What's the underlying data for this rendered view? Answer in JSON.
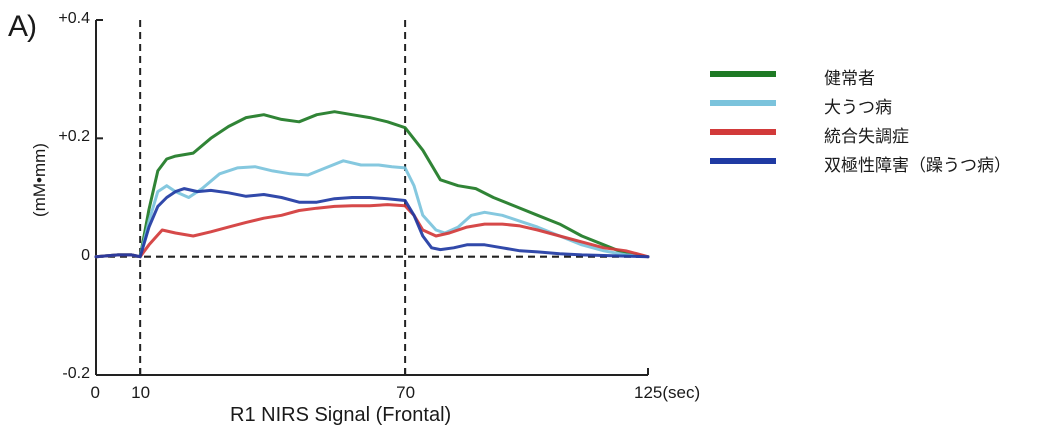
{
  "panel_label": "A)",
  "chart_data": {
    "type": "line",
    "title": "",
    "xlabel": "R1 NIRS Signal (Frontal)",
    "ylabel": "(mM•mm)",
    "xlim": [
      0,
      125
    ],
    "ylim": [
      -0.2,
      0.4
    ],
    "x_ticks": [
      {
        "value": 0,
        "label": "0"
      },
      {
        "value": 10,
        "label": "10"
      },
      {
        "value": 70,
        "label": "70"
      },
      {
        "value": 125,
        "label": "125(sec)"
      }
    ],
    "y_ticks": [
      {
        "value": 0.4,
        "label": "+0.4"
      },
      {
        "value": 0.2,
        "label": "+0.2"
      },
      {
        "value": 0,
        "label": "0"
      },
      {
        "value": -0.2,
        "label": "-0.2"
      }
    ],
    "reference_lines": {
      "vertical_x": [
        10,
        70
      ],
      "horizontal_y": [
        0
      ]
    },
    "grid": false,
    "legend_position": "right",
    "series": [
      {
        "name": "健常者",
        "color": "#1e7a25",
        "x": [
          0,
          5,
          8,
          10,
          12,
          14,
          16,
          18,
          22,
          26,
          30,
          34,
          38,
          42,
          46,
          50,
          54,
          58,
          62,
          66,
          70,
          74,
          78,
          82,
          86,
          90,
          95,
          100,
          105,
          110,
          115,
          120,
          125
        ],
        "y": [
          0,
          0.003,
          0.003,
          0,
          0.08,
          0.145,
          0.165,
          0.17,
          0.175,
          0.2,
          0.22,
          0.235,
          0.24,
          0.232,
          0.228,
          0.24,
          0.245,
          0.24,
          0.235,
          0.228,
          0.218,
          0.18,
          0.13,
          0.12,
          0.115,
          0.1,
          0.085,
          0.07,
          0.055,
          0.035,
          0.02,
          0.005,
          0
        ]
      },
      {
        "name": "大うつ病",
        "color": "#7bc3dc",
        "x": [
          0,
          5,
          8,
          10,
          12,
          14,
          16,
          18,
          21,
          24,
          28,
          32,
          36,
          40,
          44,
          48,
          52,
          56,
          60,
          64,
          67,
          70,
          72,
          74,
          77,
          79,
          82,
          85,
          88,
          92,
          96,
          100,
          105,
          110,
          115,
          120,
          125
        ],
        "y": [
          0,
          0.003,
          0.003,
          0,
          0.06,
          0.11,
          0.12,
          0.11,
          0.1,
          0.115,
          0.14,
          0.15,
          0.152,
          0.145,
          0.14,
          0.138,
          0.15,
          0.162,
          0.155,
          0.155,
          0.152,
          0.15,
          0.12,
          0.07,
          0.045,
          0.04,
          0.05,
          0.07,
          0.075,
          0.07,
          0.06,
          0.05,
          0.035,
          0.02,
          0.01,
          0.003,
          0
        ]
      },
      {
        "name": "統合失調症",
        "color": "#d23a3a",
        "x": [
          0,
          5,
          8,
          10,
          12,
          15,
          18,
          22,
          26,
          30,
          34,
          38,
          42,
          46,
          50,
          54,
          58,
          62,
          66,
          70,
          72,
          74,
          77,
          80,
          84,
          88,
          92,
          96,
          100,
          105,
          110,
          115,
          120,
          125
        ],
        "y": [
          0,
          0.003,
          0.003,
          0,
          0.02,
          0.045,
          0.04,
          0.035,
          0.042,
          0.05,
          0.058,
          0.065,
          0.07,
          0.078,
          0.082,
          0.085,
          0.086,
          0.086,
          0.088,
          0.086,
          0.07,
          0.045,
          0.035,
          0.04,
          0.05,
          0.055,
          0.055,
          0.052,
          0.045,
          0.035,
          0.025,
          0.015,
          0.01,
          0
        ]
      },
      {
        "name": "双極性障害（躁うつ病）",
        "color": "#1f3aa3",
        "x": [
          0,
          5,
          8,
          10,
          12,
          14,
          16,
          18,
          20,
          23,
          26,
          30,
          34,
          38,
          42,
          46,
          50,
          54,
          58,
          62,
          66,
          70,
          72,
          74,
          76,
          78,
          81,
          84,
          88,
          92,
          96,
          100,
          105,
          110,
          115,
          120,
          125
        ],
        "y": [
          0,
          0.003,
          0.003,
          0,
          0.05,
          0.085,
          0.1,
          0.11,
          0.115,
          0.11,
          0.112,
          0.108,
          0.102,
          0.105,
          0.1,
          0.092,
          0.092,
          0.098,
          0.1,
          0.1,
          0.098,
          0.095,
          0.07,
          0.035,
          0.015,
          0.012,
          0.015,
          0.02,
          0.02,
          0.015,
          0.01,
          0.008,
          0.005,
          0.003,
          0.002,
          0.001,
          0
        ]
      }
    ]
  }
}
